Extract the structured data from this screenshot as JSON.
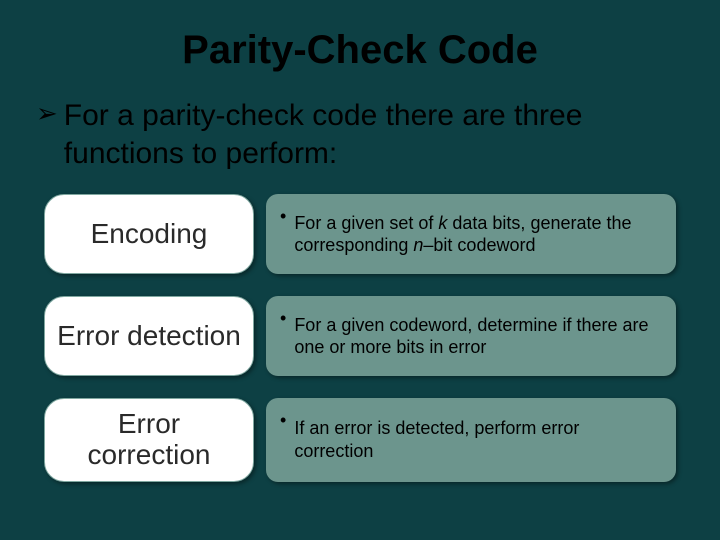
{
  "colors": {
    "background": "#0d4044",
    "title_color": "#000000",
    "intro_color": "#000000",
    "label_box_bg": "#ffffff",
    "label_box_border": "#7fa7a0",
    "label_text_color": "#2a2a2a",
    "desc_box_bg": "#6c958d",
    "desc_text_color": "#000000"
  },
  "typography": {
    "title_fontsize": 40,
    "intro_fontsize": 30,
    "label_fontsize": 28,
    "desc_fontsize": 18
  },
  "title": "Parity-Check Code",
  "intro": {
    "bullet_glyph": "➢",
    "line1": "For a parity-check code there are three",
    "line2": "functions to perform:"
  },
  "rows": [
    {
      "label": "Encoding",
      "desc_prefix": "For a given set of ",
      "desc_ital1": "k",
      "desc_mid": " data bits, generate the corresponding ",
      "desc_ital2": "n",
      "desc_suffix": "–bit codeword"
    },
    {
      "label": "Error detection",
      "desc_prefix": "For a given codeword, determine if there are one or more bits in error",
      "desc_ital1": "",
      "desc_mid": "",
      "desc_ital2": "",
      "desc_suffix": ""
    },
    {
      "label": "Error correction",
      "desc_prefix": "If an error is detected, perform error correction",
      "desc_ital1": "",
      "desc_mid": "",
      "desc_ital2": "",
      "desc_suffix": ""
    }
  ]
}
